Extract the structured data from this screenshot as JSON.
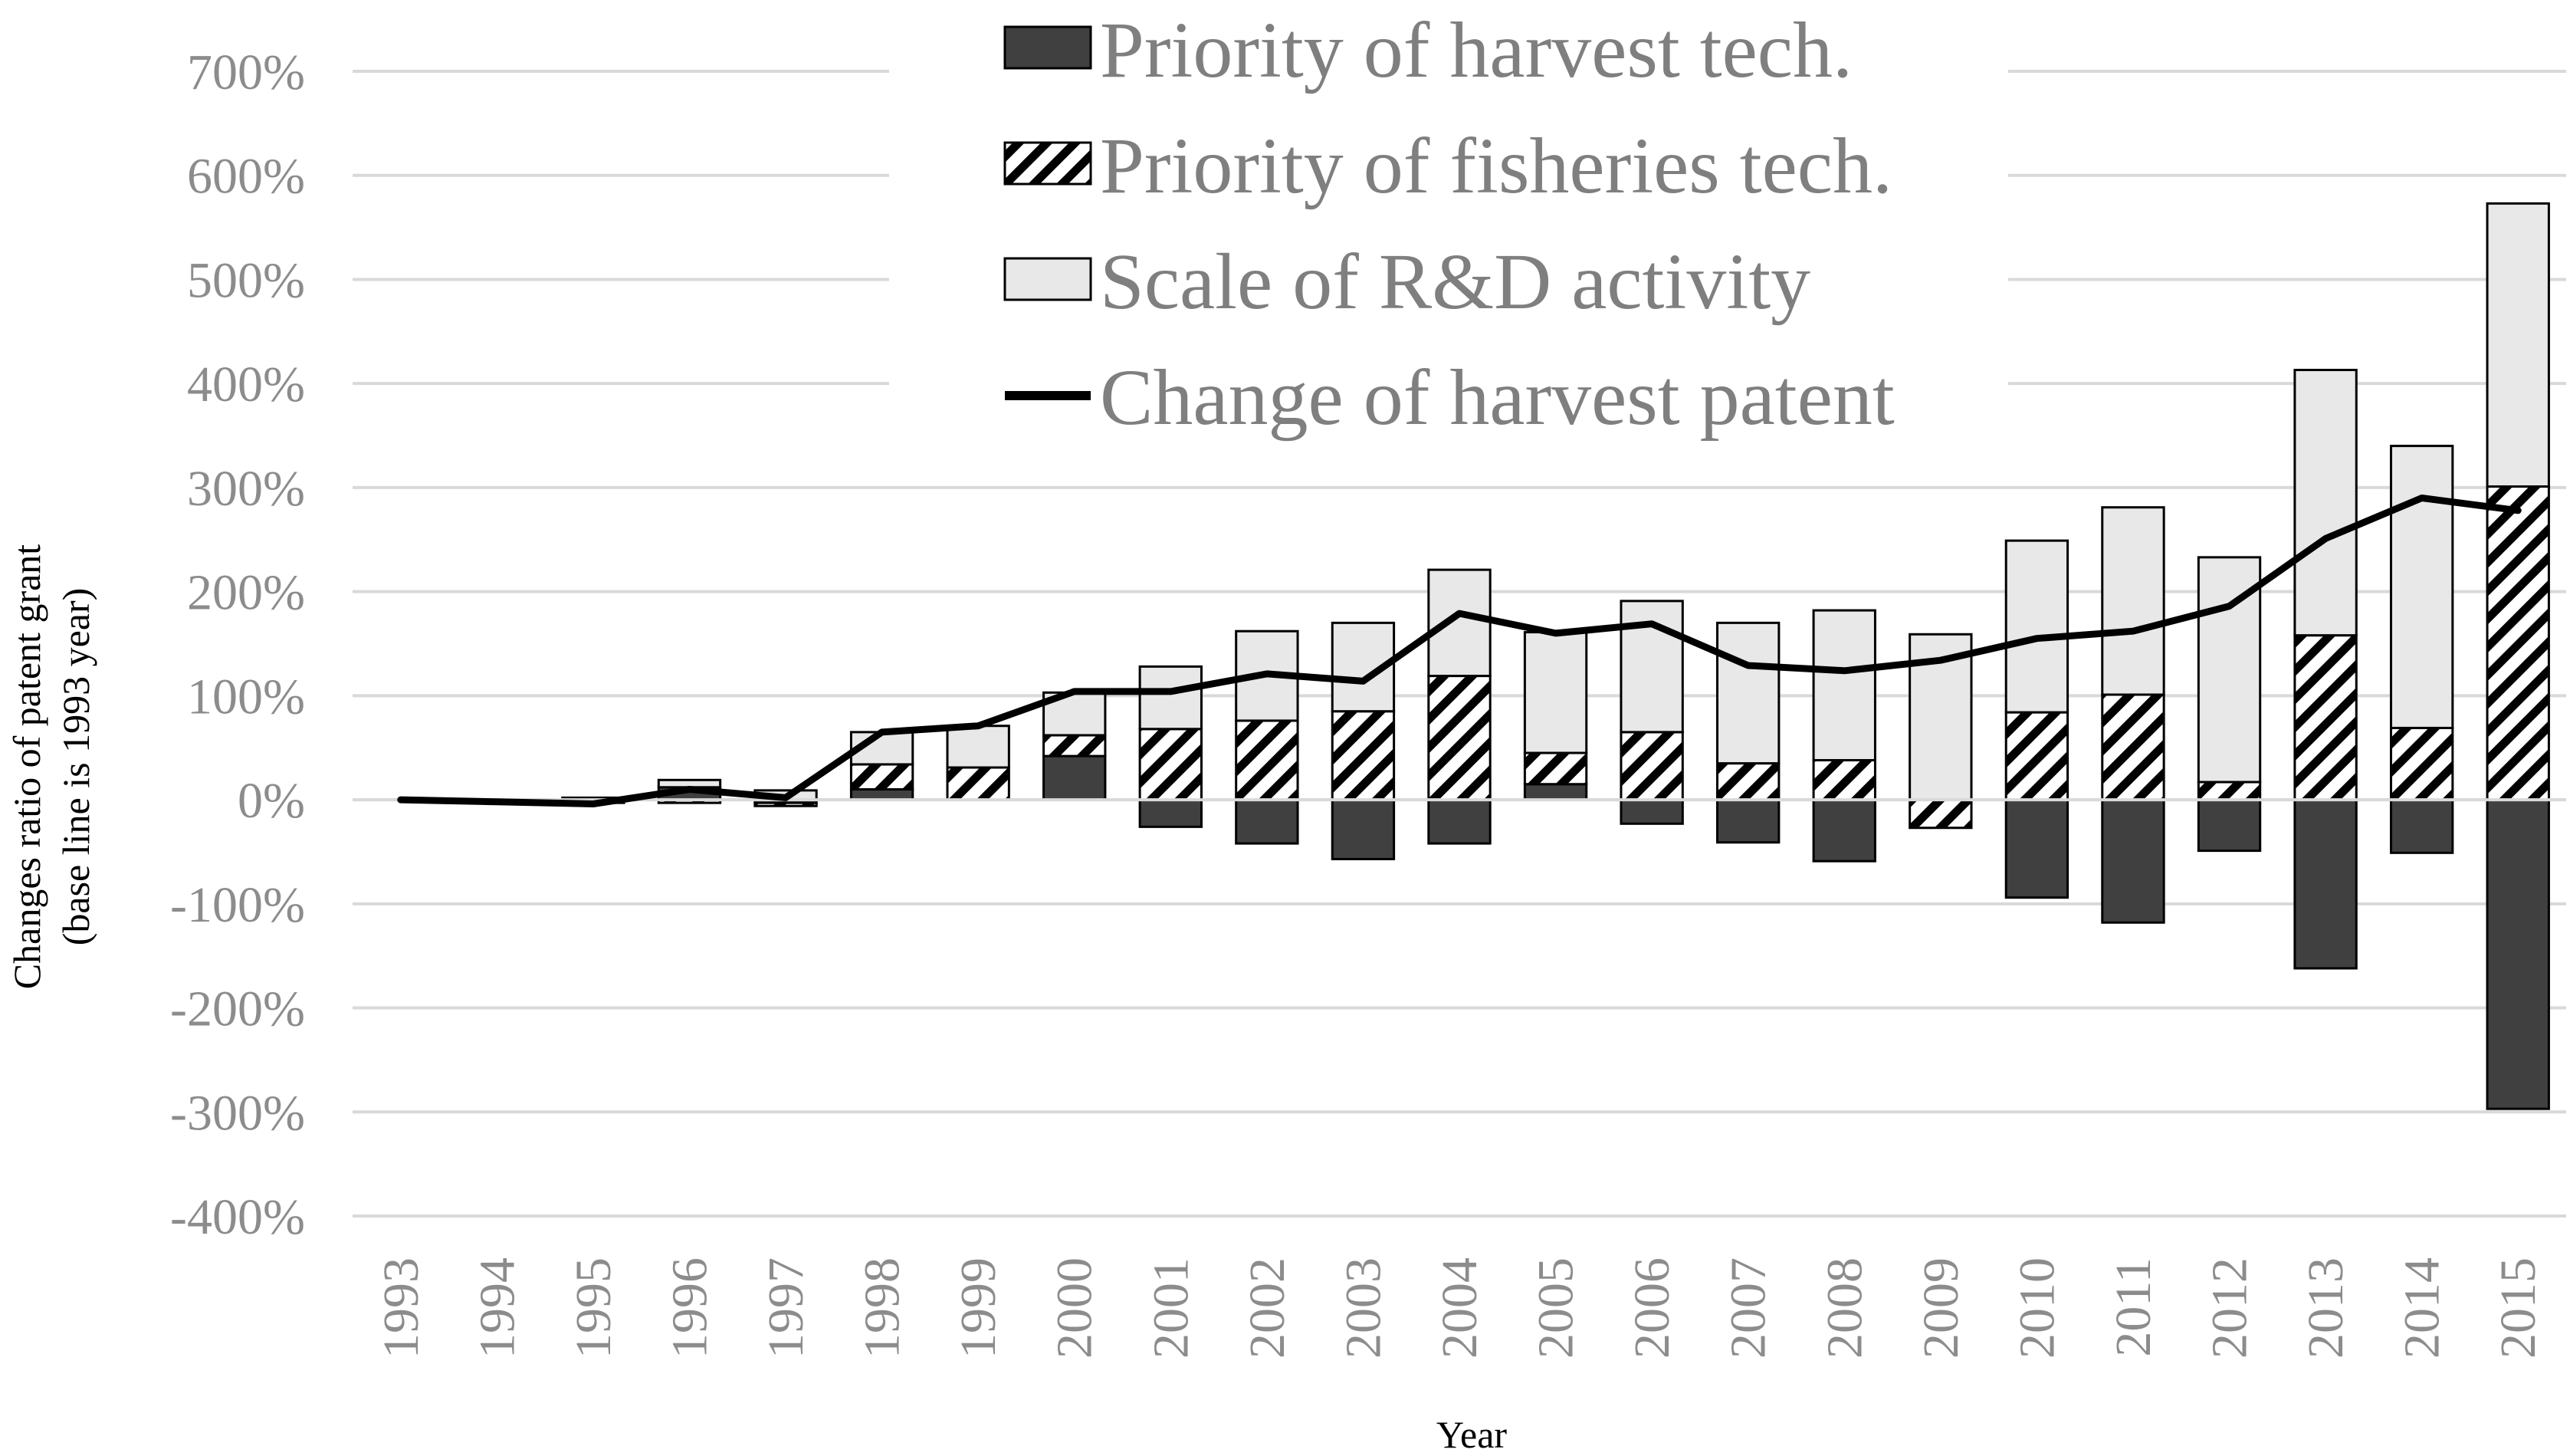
{
  "chart_data": {
    "type": "bar",
    "stacked": true,
    "title": "",
    "xlabel": "Year",
    "ylabel_lines": [
      "Changes ratio of patent grant",
      "(base line is 1993 year)"
    ],
    "ylim": [
      -400,
      700
    ],
    "y_ticks": [
      700,
      600,
      500,
      400,
      300,
      200,
      100,
      0,
      -100,
      -200,
      -300,
      -400
    ],
    "y_tick_labels": [
      "700%",
      "600%",
      "500%",
      "400%",
      "300%",
      "200%",
      "100%",
      "0%",
      "-100%",
      "-200%",
      "-300%",
      "-400%"
    ],
    "categories": [
      "1993",
      "1994",
      "1995",
      "1996",
      "1997",
      "1998",
      "1999",
      "2000",
      "2001",
      "2002",
      "2003",
      "2004",
      "2005",
      "2006",
      "2007",
      "2008",
      "2009",
      "2010",
      "2011",
      "2012",
      "2013",
      "2014",
      "2015"
    ],
    "gridlines": true,
    "legend_position": "top-center",
    "series": [
      {
        "name": "Priority of harvest tech.",
        "kind": "bar",
        "style": "solid-dark",
        "color": "#404040",
        "values": [
          0,
          -1,
          -3,
          12,
          -3,
          10,
          0,
          42,
          -26,
          -42,
          -57,
          -42,
          15,
          -23,
          -41,
          -59,
          0,
          -94,
          -118,
          -49,
          -162,
          -51,
          -297
        ]
      },
      {
        "name": "Priority of fisheries tech.",
        "kind": "bar",
        "style": "hatched",
        "color": "#000000",
        "values": [
          0,
          0,
          0,
          -3,
          -3,
          24,
          31,
          20,
          68,
          76,
          85,
          119,
          30,
          65,
          35,
          38,
          -27,
          84,
          101,
          17,
          158,
          69,
          301
        ]
      },
      {
        "name": "Scale of R&D activity",
        "kind": "bar",
        "style": "light",
        "color": "#e8e8e8",
        "values": [
          0,
          0,
          2,
          7,
          9,
          31,
          40,
          41,
          60,
          86,
          85,
          102,
          116,
          126,
          135,
          144,
          159,
          165,
          180,
          216,
          255,
          271,
          272
        ]
      },
      {
        "name": "Change of harvest patent",
        "kind": "line",
        "color": "#000000",
        "values": [
          0,
          -2,
          -4,
          10,
          2,
          65,
          71,
          104,
          104,
          121,
          114,
          179,
          160,
          169,
          129,
          124,
          134,
          155,
          162,
          186,
          251,
          290,
          278
        ]
      }
    ]
  }
}
